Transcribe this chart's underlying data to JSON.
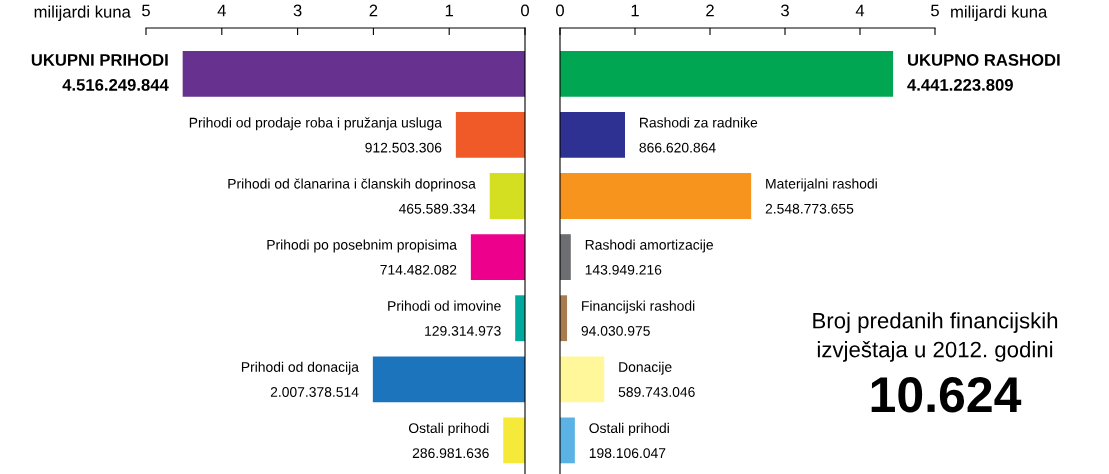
{
  "chart_data": [
    {
      "type": "bar",
      "orientation": "horizontal",
      "xlabel": "milijardi kuna",
      "xlim": [
        5,
        0
      ],
      "xticks": [
        0,
        1,
        2,
        3,
        4,
        5
      ],
      "categories": [
        "UKUPNI PRIHODI",
        "Prihodi od prodaje roba i pružanja usluga",
        "Prihodi od članarina i članskih doprinosa",
        "Prihodi po posebnim propisima",
        "Prihodi od imovine",
        "Prihodi od donacija",
        "Ostali prihodi"
      ],
      "values": [
        4.516249844,
        0.912503306,
        0.465589334,
        0.714482082,
        0.129314973,
        2.007378514,
        0.286981636
      ],
      "colors": [
        "#66318f",
        "#f05a28",
        "#d4df22",
        "#ec008c",
        "#00a99d",
        "#1c75bc",
        "#f5e93a"
      ],
      "annotations": [
        {
          "text": "4.516.249.844",
          "x": 4.516249844,
          "y": "UKUPNI PRIHODI"
        },
        {
          "text": "912.503.306",
          "x": 0.912503306,
          "y": "Prihodi od prodaje roba i pružanja usluga"
        },
        {
          "text": "465.589.334",
          "x": 0.465589334,
          "y": "Prihodi od članarina i članskih doprinosa"
        },
        {
          "text": "714.482.082",
          "x": 0.714482082,
          "y": "Prihodi po posebnim propisima"
        },
        {
          "text": "129.314.973",
          "x": 0.129314973,
          "y": "Prihodi od imovine"
        },
        {
          "text": "2.007.378.514",
          "x": 2.007378514,
          "y": "Prihodi od donacija"
        },
        {
          "text": "286.981.636",
          "x": 0.286981636,
          "y": "Ostali prihodi"
        }
      ]
    },
    {
      "type": "bar",
      "orientation": "horizontal",
      "xlabel": "milijardi kuna",
      "xlim": [
        0,
        5
      ],
      "xticks": [
        0,
        1,
        2,
        3,
        4,
        5
      ],
      "categories": [
        "UKUPNO RASHODI",
        "Rashodi za radnike",
        "Materijalni rashodi",
        "Rashodi amortizacije",
        "Financijski rashodi",
        "Donacije",
        "Ostali prihodi"
      ],
      "values": [
        4.441223809,
        0.866620864,
        2.548773655,
        0.143949216,
        0.094030975,
        0.589743046,
        0.198106047
      ],
      "colors": [
        "#00a651",
        "#2e3192",
        "#f7941d",
        "#6d6e71",
        "#a97c50",
        "#fff799",
        "#5bb3e5"
      ],
      "annotations": [
        {
          "text": "4.441.223.809",
          "x": 4.441223809,
          "y": "UKUPNO RASHODI"
        },
        {
          "text": "866.620.864",
          "x": 0.866620864,
          "y": "Rashodi za radnike"
        },
        {
          "text": "2.548.773.655",
          "x": 2.548773655,
          "y": "Materijalni rashodi"
        },
        {
          "text": "143.949.216",
          "x": 0.143949216,
          "y": "Rashodi amortizacije"
        },
        {
          "text": "94.030.975",
          "x": 0.094030975,
          "y": "Financijski rashodi"
        },
        {
          "text": "589.743.046",
          "x": 0.589743046,
          "y": "Donacije"
        },
        {
          "text": "198.106.047",
          "x": 0.198106047,
          "y": "Ostali prihodi"
        },
        "Broj predanih financijskih\nizvještaja u 2012. godini",
        "10.624"
      ]
    }
  ]
}
